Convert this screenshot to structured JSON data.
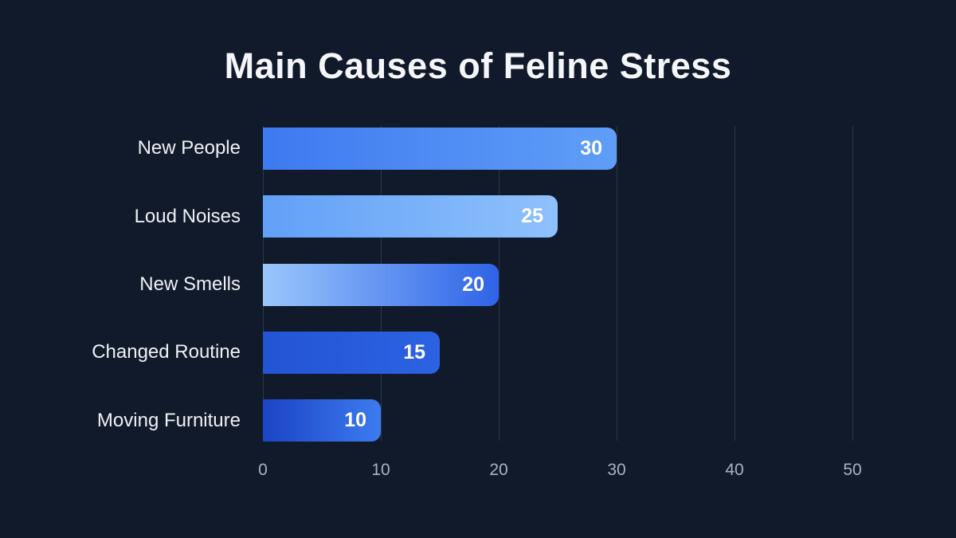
{
  "chart_data": {
    "type": "bar",
    "orientation": "horizontal",
    "title": "Main Causes of Feline Stress",
    "categories": [
      "New People",
      "Loud Noises",
      "New Smells",
      "Changed Routine",
      "Moving Furniture"
    ],
    "values": [
      30,
      25,
      20,
      15,
      10
    ],
    "xlabel": "",
    "ylabel": "",
    "xlim": [
      0,
      50
    ],
    "x_ticks": [
      0,
      10,
      20,
      30,
      40,
      50
    ],
    "grid": true,
    "legend": false,
    "value_labels_inside_bars": true,
    "bar_gradients": [
      [
        "#3e7af0",
        "#5f9ef7"
      ],
      [
        "#62a0f7",
        "#8fc1fb"
      ],
      [
        "#9ac7fb",
        "#2e63e7"
      ],
      [
        "#2354d4",
        "#2c63e3"
      ],
      [
        "#1c44c5",
        "#3c7bf0"
      ]
    ]
  },
  "theme": {
    "background": "#111a2b",
    "title_color": "#f4f6fa",
    "category_label_color": "#eef1f6",
    "value_label_color": "#ffffff",
    "tick_label_color": "#a9b2c1",
    "gridline_color": "#2e3747"
  }
}
